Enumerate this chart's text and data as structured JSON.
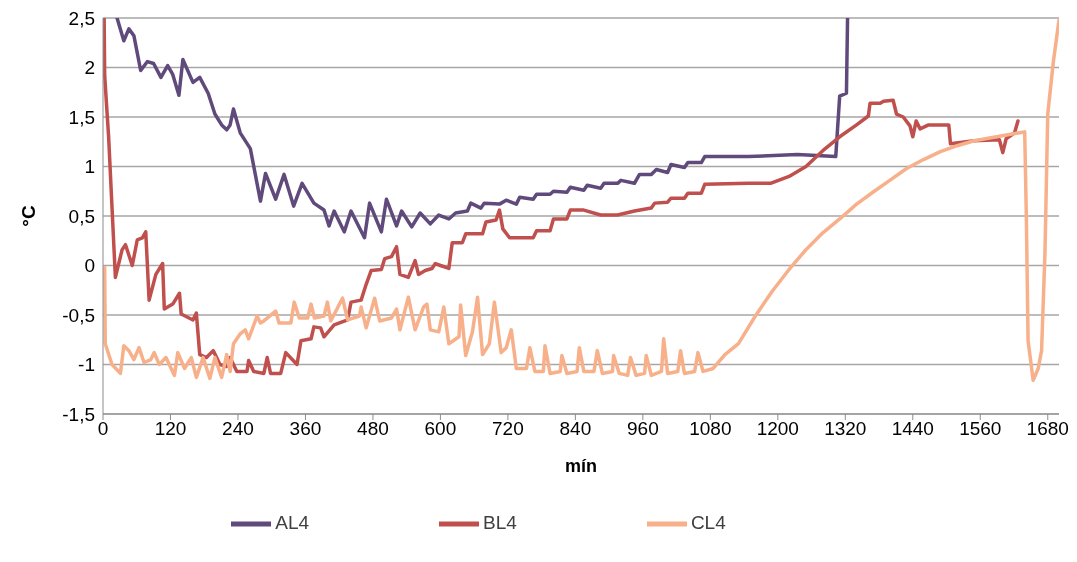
{
  "chart_data": {
    "type": "line",
    "xlabel": "mín",
    "ylabel": "°C",
    "xlim": [
      0,
      1700
    ],
    "xticks": [
      0,
      120,
      240,
      360,
      480,
      600,
      720,
      840,
      960,
      1080,
      1200,
      1320,
      1440,
      1560,
      1680
    ],
    "ylim": [
      -1.5,
      2.5
    ],
    "yticks": [
      {
        "value": -1.5,
        "label": "-1,5"
      },
      -1,
      {
        "value": -0.5,
        "label": "-0,5"
      },
      0,
      {
        "value": 0.5,
        "label": "0,5"
      },
      1,
      {
        "value": 1.5,
        "label": "1,5"
      },
      2,
      {
        "value": 2.5,
        "label": "2,5"
      }
    ],
    "grid": "y",
    "legend": "bottom",
    "marker": "none",
    "line_style": "solid",
    "series": [
      {
        "name": "AL4",
        "color": "#604a7b",
        "x": [
          25,
          37,
          46,
          55,
          67,
          79,
          90,
          103,
          115,
          124,
          135,
          142,
          160,
          172,
          187,
          199,
          211,
          220,
          226,
          232,
          244,
          262,
          280,
          289,
          307,
          322,
          339,
          354,
          375,
          393,
          402,
          411,
          429,
          441,
          465,
          474,
          495,
          504,
          522,
          531,
          549,
          564,
          582,
          597,
          615,
          627,
          648,
          654,
          672,
          678,
          705,
          717,
          735,
          741,
          765,
          771,
          795,
          801,
          825,
          831,
          855,
          861,
          885,
          891,
          915,
          921,
          945,
          954,
          975,
          984,
          1004,
          1010,
          1034,
          1040,
          1064,
          1070,
          1148,
          1235,
          1303,
          1310,
          1322,
          1324
        ],
        "values": [
          2.5,
          2.27,
          2.39,
          2.32,
          1.97,
          2.06,
          2.04,
          1.9,
          2.02,
          1.93,
          1.72,
          2.08,
          1.85,
          1.9,
          1.74,
          1.53,
          1.42,
          1.37,
          1.42,
          1.58,
          1.34,
          1.18,
          0.65,
          0.93,
          0.67,
          0.92,
          0.6,
          0.83,
          0.63,
          0.56,
          0.4,
          0.55,
          0.34,
          0.55,
          0.28,
          0.63,
          0.34,
          0.67,
          0.4,
          0.55,
          0.39,
          0.53,
          0.42,
          0.51,
          0.47,
          0.53,
          0.55,
          0.63,
          0.58,
          0.63,
          0.62,
          0.66,
          0.62,
          0.69,
          0.67,
          0.72,
          0.72,
          0.75,
          0.74,
          0.79,
          0.76,
          0.81,
          0.78,
          0.83,
          0.83,
          0.86,
          0.83,
          0.92,
          0.92,
          0.97,
          0.94,
          1.02,
          0.99,
          1.04,
          1.04,
          1.1,
          1.1,
          1.12,
          1.1,
          1.71,
          1.74,
          2.5
        ]
      },
      {
        "name": "BL4",
        "color": "#c0504d",
        "x": [
          2,
          3,
          6,
          10,
          22,
          34,
          40,
          52,
          61,
          70,
          76,
          82,
          94,
          106,
          109,
          124,
          136,
          139,
          160,
          166,
          172,
          184,
          196,
          208,
          220,
          226,
          238,
          256,
          259,
          268,
          286,
          292,
          298,
          316,
          325,
          345,
          352,
          370,
          375,
          387,
          393,
          411,
          435,
          441,
          459,
          468,
          477,
          495,
          501,
          513,
          522,
          528,
          543,
          555,
          561,
          573,
          585,
          591,
          600,
          615,
          621,
          639,
          645,
          675,
          681,
          699,
          705,
          711,
          723,
          765,
          771,
          795,
          801,
          825,
          831,
          855,
          885,
          915,
          945,
          975,
          981,
          1004,
          1010,
          1034,
          1040,
          1064,
          1070,
          1148,
          1187,
          1220,
          1250,
          1280,
          1310,
          1340,
          1361,
          1364,
          1382,
          1388,
          1405,
          1411,
          1423,
          1435,
          1440,
          1446,
          1453,
          1468,
          1504,
          1507,
          1549,
          1594,
          1600,
          1606,
          1621,
          1627
        ],
        "values": [
          2.5,
          1.92,
          1.65,
          1.3,
          -0.12,
          0.16,
          0.21,
          0,
          0.26,
          0.28,
          0.34,
          -0.35,
          -0.09,
          0.02,
          -0.44,
          -0.39,
          -0.28,
          -0.49,
          -0.55,
          -0.48,
          -0.9,
          -0.93,
          -0.86,
          -1,
          -1.02,
          -0.93,
          -1.07,
          -1.07,
          -0.96,
          -1.07,
          -1.09,
          -0.93,
          -1.09,
          -1.09,
          -0.88,
          -1,
          -0.76,
          -0.74,
          -0.62,
          -0.63,
          -0.72,
          -0.6,
          -0.55,
          -0.37,
          -0.35,
          -0.19,
          -0.05,
          -0.04,
          0.07,
          0.09,
          0.19,
          -0.09,
          -0.12,
          0.05,
          -0.09,
          -0.05,
          -0.03,
          0.02,
          0,
          -0.03,
          0.23,
          0.23,
          0.32,
          0.32,
          0.44,
          0.46,
          0.56,
          0.37,
          0.28,
          0.28,
          0.35,
          0.35,
          0.47,
          0.47,
          0.56,
          0.56,
          0.51,
          0.51,
          0.55,
          0.58,
          0.63,
          0.64,
          0.68,
          0.68,
          0.73,
          0.73,
          0.82,
          0.83,
          0.83,
          0.9,
          1,
          1.16,
          1.3,
          1.42,
          1.51,
          1.64,
          1.64,
          1.66,
          1.67,
          1.53,
          1.5,
          1.41,
          1.3,
          1.46,
          1.38,
          1.42,
          1.42,
          1.23,
          1.26,
          1.27,
          1.14,
          1.28,
          1.34,
          1.46
        ]
      },
      {
        "name": "CL4",
        "color": "#f7b08a",
        "x": [
          3,
          4,
          16,
          31,
          37,
          46,
          55,
          64,
          73,
          85,
          91,
          100,
          112,
          127,
          133,
          145,
          157,
          166,
          178,
          190,
          199,
          211,
          220,
          226,
          232,
          244,
          253,
          259,
          274,
          280,
          286,
          307,
          313,
          334,
          340,
          349,
          364,
          370,
          376,
          393,
          399,
          405,
          426,
          435,
          456,
          459,
          468,
          483,
          492,
          513,
          522,
          528,
          543,
          555,
          570,
          576,
          582,
          597,
          606,
          615,
          633,
          636,
          645,
          657,
          666,
          675,
          687,
          696,
          708,
          717,
          726,
          735,
          753,
          759,
          768,
          783,
          786,
          795,
          813,
          816,
          825,
          843,
          847,
          855,
          873,
          879,
          888,
          906,
          908,
          918,
          933,
          938,
          948,
          963,
          966,
          975,
          993,
          997,
          1004,
          1022,
          1027,
          1034,
          1052,
          1058,
          1067,
          1085,
          1106,
          1130,
          1160,
          1190,
          1220,
          1250,
          1280,
          1310,
          1340,
          1369,
          1399,
          1429,
          1459,
          1489,
          1519,
          1549,
          1579,
          1609,
          1639,
          1642,
          1645,
          1654,
          1663,
          1669,
          1675,
          1680,
          1690,
          1700
        ],
        "values": [
          -0.02,
          -0.79,
          -1,
          -1.09,
          -0.81,
          -0.86,
          -0.95,
          -0.83,
          -0.98,
          -0.95,
          -0.88,
          -1,
          -0.93,
          -1.11,
          -0.88,
          -1.04,
          -0.93,
          -1.13,
          -0.93,
          -1.14,
          -0.93,
          -1.13,
          -0.9,
          -1.07,
          -0.79,
          -0.69,
          -0.65,
          -0.74,
          -0.51,
          -0.58,
          -0.56,
          -0.46,
          -0.58,
          -0.58,
          -0.37,
          -0.53,
          -0.53,
          -0.39,
          -0.53,
          -0.51,
          -0.37,
          -0.56,
          -0.33,
          -0.55,
          -0.51,
          -0.42,
          -0.63,
          -0.33,
          -0.56,
          -0.53,
          -0.44,
          -0.65,
          -0.32,
          -0.65,
          -0.42,
          -0.39,
          -0.65,
          -0.67,
          -0.42,
          -0.79,
          -0.72,
          -0.4,
          -0.91,
          -0.67,
          -0.32,
          -0.9,
          -0.79,
          -0.37,
          -0.88,
          -0.83,
          -0.65,
          -1.04,
          -1.04,
          -0.83,
          -1.07,
          -1.07,
          -0.81,
          -1.09,
          -1.07,
          -0.91,
          -1.09,
          -1.07,
          -0.83,
          -1.07,
          -1.07,
          -0.86,
          -1.09,
          -1.07,
          -0.91,
          -1.09,
          -1.11,
          -0.93,
          -1.11,
          -1.09,
          -0.91,
          -1.11,
          -1.07,
          -0.74,
          -1.09,
          -1.07,
          -0.86,
          -1.09,
          -1.07,
          -0.88,
          -1.07,
          -1.04,
          -0.9,
          -0.79,
          -0.51,
          -0.26,
          -0.04,
          0.16,
          0.33,
          0.47,
          0.62,
          0.74,
          0.86,
          0.98,
          1.07,
          1.15,
          1.21,
          1.26,
          1.29,
          1.32,
          1.35,
          0.47,
          -0.76,
          -1.16,
          -1.04,
          -0.86,
          0.12,
          1.53,
          2.06,
          2.48
        ]
      }
    ]
  }
}
